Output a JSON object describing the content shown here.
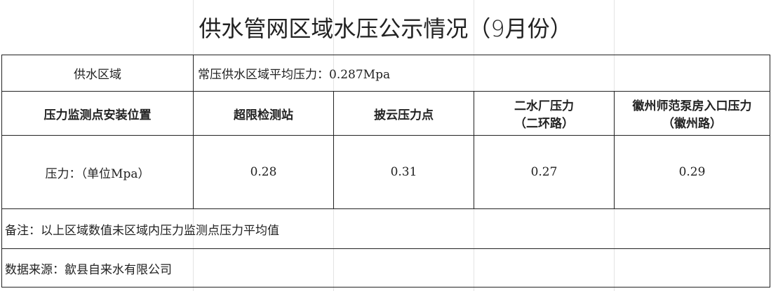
{
  "title": "供水管网区域水压公示情况（9月份）",
  "region": {
    "label": "供水区域",
    "value": "常压供水区域平均压力：0.287Mpa"
  },
  "header": {
    "label": "压力监测点安装位置",
    "columns": [
      {
        "line1": "超限检测站",
        "line2": ""
      },
      {
        "line1": "披云压力点",
        "line2": ""
      },
      {
        "line1": "二水厂压力",
        "line2": "（二环路）"
      },
      {
        "line1": "徽州师范泵房入口压力",
        "line2": "（徽州路）"
      }
    ]
  },
  "pressure": {
    "label": "压力：（单位Mpa）",
    "values": [
      "0.28",
      "0.31",
      "0.27",
      "0.29"
    ]
  },
  "note": "备注：以上区域数值未区域内压力监测点压力平均值",
  "source": "数据来源：歙县自来水有限公司"
}
